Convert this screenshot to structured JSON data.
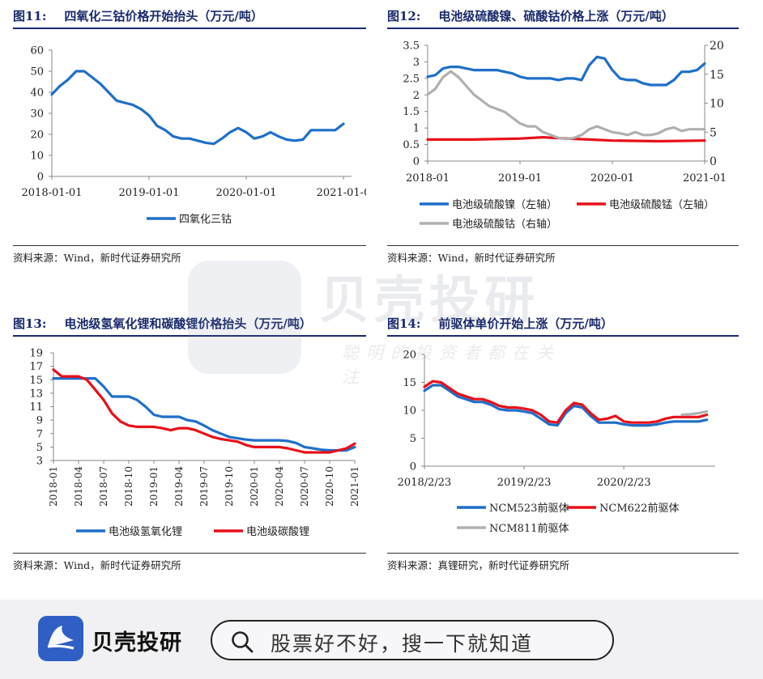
{
  "panels": [
    {
      "number": "图11:",
      "title": "四氧化三钴价格开始抬头（万元/吨）",
      "source": "资料来源：Wind，新时代证券研究所"
    },
    {
      "number": "图12:",
      "title": "电池级硫酸镍、硫酸钴价格上涨（万元/吨）",
      "source": "资料来源：Wind，新时代证券研究所"
    },
    {
      "number": "图13:",
      "title": "电池级氢氧化锂和碳酸锂价格抬头（万元/吨）",
      "source": "资料来源：Wind，新时代证券研究所"
    },
    {
      "number": "图14:",
      "title": "前驱体单价开始上涨（万元/吨）",
      "source": "资料来源：真锂研究，新时代证券研究所"
    }
  ],
  "watermark": {
    "brand": "贝壳投研",
    "slogan": "聪明的投资者都在关注"
  },
  "bottom_bar": {
    "brand": "贝壳投研",
    "search_placeholder": "股票好不好，搜一下就知道",
    "icon": "search-icon"
  },
  "chart_data": [
    {
      "type": "line",
      "x_ticks": [
        "2018-01-01",
        "2019-01-01",
        "2020-01-01",
        "2021-01-0"
      ],
      "ylim": [
        0,
        60
      ],
      "y_ticks": [
        0,
        10,
        20,
        30,
        40,
        50,
        60
      ],
      "legend_position": "bottom",
      "series": [
        {
          "name": "四氧化三钴",
          "color": "#1f6fc8",
          "x": [
            "2018-01",
            "2018-02",
            "2018-03",
            "2018-04",
            "2018-05",
            "2018-06",
            "2018-07",
            "2018-08",
            "2018-09",
            "2018-10",
            "2018-11",
            "2018-12",
            "2019-01",
            "2019-02",
            "2019-03",
            "2019-04",
            "2019-05",
            "2019-06",
            "2019-07",
            "2019-08",
            "2019-09",
            "2019-10",
            "2019-11",
            "2019-12",
            "2020-01",
            "2020-02",
            "2020-03",
            "2020-04",
            "2020-05",
            "2020-06",
            "2020-07",
            "2020-08",
            "2020-09",
            "2020-10",
            "2020-11",
            "2020-12",
            "2021-01"
          ],
          "y": [
            39,
            43,
            46,
            50,
            50,
            47,
            44,
            40,
            36,
            35,
            34,
            32,
            29,
            24,
            22,
            19,
            18,
            18,
            17,
            16,
            15.5,
            18,
            21,
            23,
            21,
            18,
            19,
            21,
            19,
            17.5,
            17,
            17.5,
            22,
            22,
            22,
            22,
            25
          ]
        }
      ]
    },
    {
      "type": "line",
      "x_ticks": [
        "2018-01",
        "2019-01",
        "2020-01",
        "2021-01"
      ],
      "ylim": [
        0,
        3.5
      ],
      "y_ticks": [
        0,
        0.5,
        1,
        1.5,
        2,
        2.5,
        3,
        3.5
      ],
      "y2lim": [
        0,
        20
      ],
      "y2_ticks": [
        0,
        5,
        10,
        15,
        20
      ],
      "legend_position": "bottom",
      "series": [
        {
          "name": "电池级硫酸镍（左轴）",
          "axis": "left",
          "color": "#1f6fc8",
          "x": [
            "2018-01",
            "2018-02",
            "2018-03",
            "2018-04",
            "2018-05",
            "2018-06",
            "2018-07",
            "2018-08",
            "2018-09",
            "2018-10",
            "2018-11",
            "2018-12",
            "2019-01",
            "2019-02",
            "2019-03",
            "2019-04",
            "2019-05",
            "2019-06",
            "2019-07",
            "2019-08",
            "2019-09",
            "2019-10",
            "2019-11",
            "2019-12",
            "2020-01",
            "2020-02",
            "2020-03",
            "2020-04",
            "2020-05",
            "2020-06",
            "2020-07",
            "2020-08",
            "2020-09",
            "2020-10",
            "2020-11",
            "2020-12",
            "2021-01"
          ],
          "y": [
            2.55,
            2.6,
            2.8,
            2.85,
            2.85,
            2.8,
            2.75,
            2.75,
            2.75,
            2.75,
            2.7,
            2.65,
            2.55,
            2.5,
            2.5,
            2.5,
            2.5,
            2.45,
            2.5,
            2.5,
            2.45,
            2.9,
            3.15,
            3.1,
            2.75,
            2.5,
            2.45,
            2.45,
            2.35,
            2.3,
            2.3,
            2.3,
            2.45,
            2.7,
            2.7,
            2.75,
            2.95
          ]
        },
        {
          "name": "电池级硫酸锰（左轴）",
          "axis": "left",
          "color": "#e8101a",
          "x": [
            "2018-01",
            "2018-07",
            "2019-01",
            "2019-04",
            "2019-07",
            "2019-10",
            "2020-01",
            "2020-07",
            "2021-01"
          ],
          "y": [
            0.65,
            0.65,
            0.68,
            0.72,
            0.68,
            0.65,
            0.62,
            0.6,
            0.62
          ]
        },
        {
          "name": "电池级硫酸钴（右轴）",
          "axis": "right",
          "color": "#b0b0b0",
          "x": [
            "2018-01",
            "2018-02",
            "2018-03",
            "2018-04",
            "2018-05",
            "2018-06",
            "2018-07",
            "2018-08",
            "2018-09",
            "2018-10",
            "2018-11",
            "2018-12",
            "2019-01",
            "2019-02",
            "2019-03",
            "2019-04",
            "2019-05",
            "2019-06",
            "2019-07",
            "2019-08",
            "2019-09",
            "2019-10",
            "2019-11",
            "2019-12",
            "2020-01",
            "2020-02",
            "2020-03",
            "2020-04",
            "2020-05",
            "2020-06",
            "2020-07",
            "2020-08",
            "2020-09",
            "2020-10",
            "2020-11",
            "2020-12",
            "2021-01"
          ],
          "y": [
            11.5,
            12.5,
            14.5,
            15.5,
            14.5,
            13,
            11.5,
            10.5,
            9.5,
            9,
            8.5,
            7.5,
            6.5,
            6,
            6,
            5,
            4.5,
            4,
            3.8,
            4,
            4.5,
            5.5,
            6,
            5.5,
            5,
            4.8,
            4.5,
            5,
            4.5,
            4.5,
            4.8,
            5.5,
            5.8,
            5.2,
            5.5,
            5.5,
            5.5
          ]
        }
      ]
    },
    {
      "type": "line",
      "x_ticks": [
        "2018-01",
        "2018-04",
        "2018-07",
        "2018-10",
        "2019-01",
        "2019-04",
        "2019-07",
        "2019-10",
        "2020-01",
        "2020-04",
        "2020-07",
        "2020-10",
        "2021-01"
      ],
      "ylim": [
        3,
        19
      ],
      "y_ticks": [
        3,
        5,
        7,
        9,
        11,
        13,
        15,
        17,
        19
      ],
      "legend_position": "bottom",
      "series": [
        {
          "name": "电池级氢氧化锂",
          "color": "#1f6fc8",
          "x": [
            "2018-01",
            "2018-02",
            "2018-03",
            "2018-04",
            "2018-05",
            "2018-06",
            "2018-07",
            "2018-08",
            "2018-09",
            "2018-10",
            "2018-11",
            "2018-12",
            "2019-01",
            "2019-02",
            "2019-03",
            "2019-04",
            "2019-05",
            "2019-06",
            "2019-07",
            "2019-08",
            "2019-09",
            "2019-10",
            "2019-11",
            "2019-12",
            "2020-01",
            "2020-02",
            "2020-03",
            "2020-04",
            "2020-05",
            "2020-06",
            "2020-07",
            "2020-08",
            "2020-09",
            "2020-10",
            "2020-11",
            "2020-12",
            "2021-01"
          ],
          "y": [
            15.2,
            15.2,
            15.2,
            15.2,
            15.2,
            15.2,
            14,
            12.5,
            12.5,
            12.5,
            12,
            11,
            9.8,
            9.5,
            9.5,
            9.5,
            9,
            8.8,
            8.2,
            7.5,
            7,
            6.5,
            6.3,
            6.1,
            6,
            6,
            6,
            6,
            5.9,
            5.6,
            5,
            4.8,
            4.6,
            4.5,
            4.5,
            4.5,
            5
          ]
        },
        {
          "name": "电池级碳酸锂",
          "color": "#e8101a",
          "x": [
            "2018-01",
            "2018-02",
            "2018-03",
            "2018-04",
            "2018-05",
            "2018-06",
            "2018-07",
            "2018-08",
            "2018-09",
            "2018-10",
            "2018-11",
            "2018-12",
            "2019-01",
            "2019-02",
            "2019-03",
            "2019-04",
            "2019-05",
            "2019-06",
            "2019-07",
            "2019-08",
            "2019-09",
            "2019-10",
            "2019-11",
            "2019-12",
            "2020-01",
            "2020-02",
            "2020-03",
            "2020-04",
            "2020-05",
            "2020-06",
            "2020-07",
            "2020-08",
            "2020-09",
            "2020-10",
            "2020-11",
            "2020-12",
            "2021-01"
          ],
          "y": [
            16.5,
            15.5,
            15.5,
            15.5,
            15,
            13.5,
            12,
            10,
            8.8,
            8.2,
            8,
            8,
            8,
            7.8,
            7.5,
            7.8,
            7.8,
            7.5,
            7,
            6.5,
            6.2,
            6,
            5.8,
            5.3,
            5,
            5,
            5,
            5,
            4.8,
            4.5,
            4.2,
            4.2,
            4.2,
            4.2,
            4.5,
            4.8,
            5.5
          ]
        }
      ]
    },
    {
      "type": "line",
      "x_ticks": [
        "2018/2/23",
        "2019/2/23",
        "2020/2/23"
      ],
      "ylim": [
        0,
        20
      ],
      "y_ticks": [
        0,
        5,
        10,
        15,
        20
      ],
      "legend_position": "bottom",
      "series": [
        {
          "name": "NCM523前驱体",
          "color": "#1f6fc8",
          "x": [
            "2018-02",
            "2018-03",
            "2018-04",
            "2018-05",
            "2018-06",
            "2018-07",
            "2018-08",
            "2018-09",
            "2018-10",
            "2018-11",
            "2018-12",
            "2019-01",
            "2019-02",
            "2019-03",
            "2019-04",
            "2019-05",
            "2019-06",
            "2019-07",
            "2019-08",
            "2019-09",
            "2019-10",
            "2019-11",
            "2019-12",
            "2020-01",
            "2020-02",
            "2020-03",
            "2020-04",
            "2020-05",
            "2020-06",
            "2020-07",
            "2020-08",
            "2020-09",
            "2020-10",
            "2020-11",
            "2020-12"
          ],
          "y": [
            13.5,
            14.5,
            14.5,
            13.5,
            12.5,
            12,
            11.5,
            11.5,
            11,
            10.2,
            10,
            10,
            9.8,
            9.5,
            8.5,
            7.5,
            7.3,
            9.5,
            10.8,
            10.5,
            9,
            7.8,
            7.8,
            7.8,
            7.5,
            7.3,
            7.3,
            7.3,
            7.5,
            7.8,
            8,
            8,
            8,
            8,
            8.3
          ]
        },
        {
          "name": "NCM622前驱体",
          "color": "#e8101a",
          "x": [
            "2018-02",
            "2018-03",
            "2018-04",
            "2018-05",
            "2018-06",
            "2018-07",
            "2018-08",
            "2018-09",
            "2018-10",
            "2018-11",
            "2018-12",
            "2019-01",
            "2019-02",
            "2019-03",
            "2019-04",
            "2019-05",
            "2019-06",
            "2019-07",
            "2019-08",
            "2019-09",
            "2019-10",
            "2019-11",
            "2019-12",
            "2020-01",
            "2020-02",
            "2020-03",
            "2020-04",
            "2020-05",
            "2020-06",
            "2020-07",
            "2020-08",
            "2020-09",
            "2020-10",
            "2020-11",
            "2020-12"
          ],
          "y": [
            14.2,
            15.2,
            15,
            14,
            13,
            12.5,
            12,
            12,
            11.5,
            10.8,
            10.5,
            10.5,
            10.3,
            10,
            9.2,
            8,
            7.8,
            10,
            11.3,
            11,
            9.5,
            8.3,
            8.5,
            9,
            8,
            7.8,
            7.8,
            7.8,
            8,
            8.5,
            8.8,
            8.8,
            8.8,
            8.8,
            9.2
          ]
        },
        {
          "name": "NCM811前驱体",
          "color": "#b0b0b0",
          "x": [
            "2020-09",
            "2020-10",
            "2020-11",
            "2020-12"
          ],
          "y": [
            9.2,
            9.3,
            9.5,
            9.8
          ]
        }
      ]
    }
  ]
}
